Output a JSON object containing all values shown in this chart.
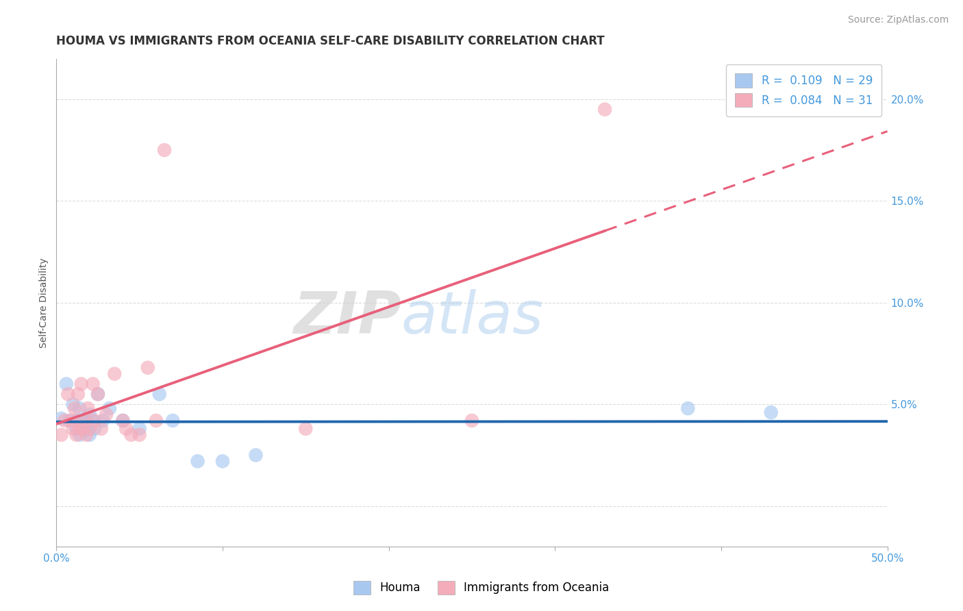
{
  "title": "HOUMA VS IMMIGRANTS FROM OCEANIA SELF-CARE DISABILITY CORRELATION CHART",
  "source": "Source: ZipAtlas.com",
  "ylabel": "Self-Care Disability",
  "xlim": [
    0,
    0.5
  ],
  "ylim": [
    -0.02,
    0.22
  ],
  "xticks": [
    0.0,
    0.1,
    0.2,
    0.3,
    0.4,
    0.5
  ],
  "yticks": [
    0.0,
    0.05,
    0.1,
    0.15,
    0.2
  ],
  "legend1_label": "R =  0.109   N = 29",
  "legend2_label": "R =  0.084   N = 31",
  "houma_color": "#A8C8F0",
  "oceania_color": "#F4ACBB",
  "houma_line_color": "#2166AC",
  "oceania_line_color": "#E8607A",
  "background_color": "#FFFFFF",
  "grid_color": "#CCCCCC",
  "houma_x": [
    0.003,
    0.006,
    0.008,
    0.01,
    0.012,
    0.012,
    0.014,
    0.014,
    0.015,
    0.016,
    0.017,
    0.018,
    0.019,
    0.02,
    0.02,
    0.022,
    0.023,
    0.025,
    0.028,
    0.032,
    0.04,
    0.05,
    0.062,
    0.07,
    0.085,
    0.1,
    0.38,
    0.43,
    0.12
  ],
  "houma_y": [
    0.043,
    0.06,
    0.042,
    0.05,
    0.042,
    0.038,
    0.048,
    0.035,
    0.038,
    0.042,
    0.038,
    0.042,
    0.038,
    0.045,
    0.035,
    0.042,
    0.038,
    0.055,
    0.042,
    0.048,
    0.042,
    0.038,
    0.055,
    0.042,
    0.022,
    0.022,
    0.048,
    0.046,
    0.025
  ],
  "oceania_x": [
    0.003,
    0.005,
    0.007,
    0.009,
    0.01,
    0.011,
    0.012,
    0.013,
    0.014,
    0.015,
    0.016,
    0.017,
    0.018,
    0.019,
    0.02,
    0.022,
    0.023,
    0.025,
    0.027,
    0.03,
    0.035,
    0.04,
    0.042,
    0.05,
    0.055,
    0.06,
    0.065,
    0.15,
    0.25,
    0.33,
    0.045
  ],
  "oceania_y": [
    0.035,
    0.042,
    0.055,
    0.042,
    0.038,
    0.048,
    0.035,
    0.055,
    0.038,
    0.06,
    0.038,
    0.042,
    0.035,
    0.048,
    0.038,
    0.06,
    0.042,
    0.055,
    0.038,
    0.045,
    0.065,
    0.042,
    0.038,
    0.035,
    0.068,
    0.042,
    0.175,
    0.038,
    0.042,
    0.195,
    0.035
  ],
  "watermark_zip": "ZIP",
  "watermark_atlas": "atlas",
  "title_fontsize": 12,
  "axis_label_fontsize": 10,
  "tick_fontsize": 11,
  "source_fontsize": 10,
  "tick_color": "#4499DD",
  "title_color": "#333333",
  "source_color": "#999999",
  "ylabel_color": "#555555"
}
